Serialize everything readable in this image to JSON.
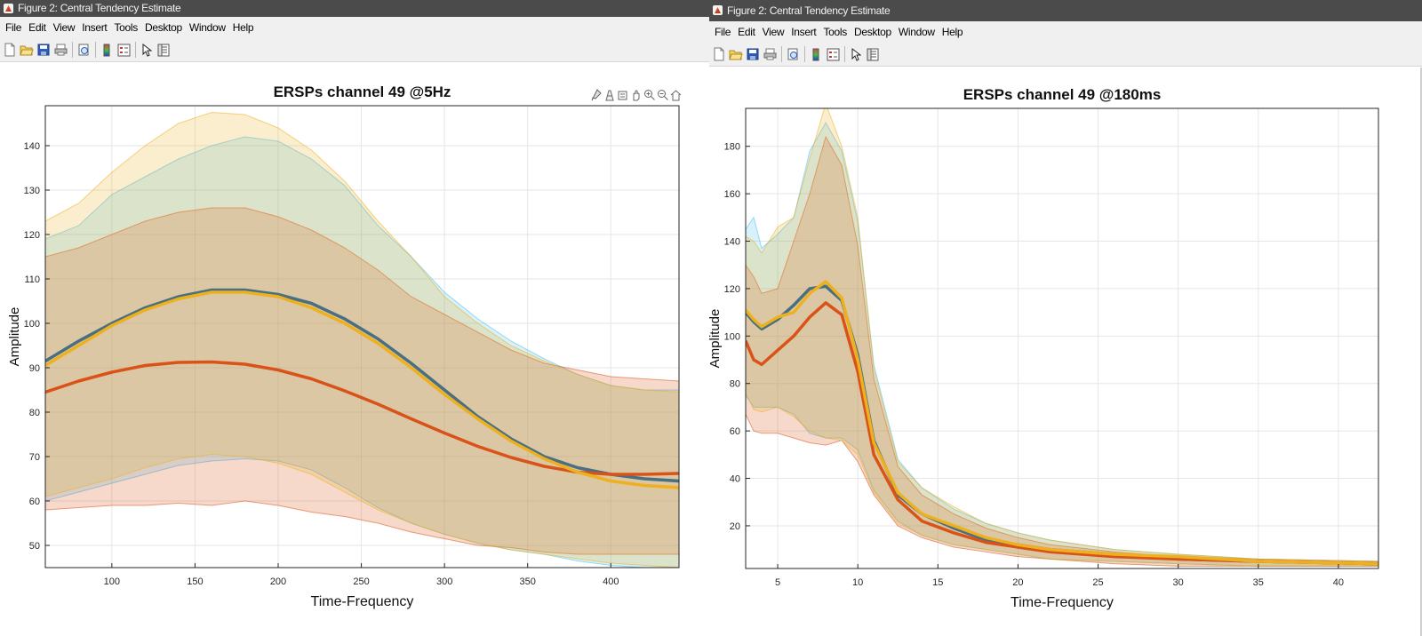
{
  "windows": [
    {
      "title": "Figure 2: Central Tendency Estimate",
      "menu": [
        "File",
        "Edit",
        "View",
        "Insert",
        "Tools",
        "Desktop",
        "Window",
        "Help"
      ],
      "toolbar_icons": [
        "new-figure-icon",
        "open-file-icon",
        "save-icon",
        "print-icon",
        "print-preview-icon",
        "colorbar-icon",
        "legend-icon",
        "pointer-icon",
        "property-inspector-icon"
      ],
      "axes_toolbar_icons": [
        "brush-icon",
        "data-tips-icon",
        "rotate-icon",
        "pan-icon",
        "zoom-in-icon",
        "zoom-out-icon",
        "home-icon"
      ]
    },
    {
      "title": "Figure 2: Central Tendency Estimate",
      "menu": [
        "File",
        "Edit",
        "View",
        "Insert",
        "Tools",
        "Desktop",
        "Window",
        "Help"
      ],
      "toolbar_icons": [
        "new-figure-icon",
        "open-file-icon",
        "save-icon",
        "print-icon",
        "print-preview-icon",
        "colorbar-icon",
        "legend-icon",
        "pointer-icon",
        "property-inspector-icon"
      ]
    }
  ],
  "chart_data": [
    {
      "type": "line",
      "title": "ERSPs channel 49 @5Hz",
      "xlabel": "Time-Frequency",
      "ylabel": "Amplitude",
      "xlim": [
        60,
        441
      ],
      "ylim": [
        45,
        149
      ],
      "xticks": [
        100,
        150,
        200,
        250,
        300,
        350,
        400
      ],
      "yticks": [
        50,
        60,
        70,
        80,
        90,
        100,
        110,
        120,
        130,
        140
      ],
      "grid": true,
      "x": [
        60,
        80,
        100,
        120,
        140,
        160,
        180,
        200,
        220,
        240,
        260,
        280,
        300,
        320,
        340,
        360,
        380,
        400,
        420,
        441
      ],
      "series": [
        {
          "name": "blue",
          "color": "#4dbeee",
          "values": [
            91.5,
            96,
            100,
            103.5,
            106,
            107.5,
            107.5,
            106.5,
            104.5,
            101,
            96.5,
            91,
            85,
            79,
            74,
            70,
            67.5,
            66,
            65,
            64.5
          ],
          "upper": [
            119,
            122,
            129,
            133,
            137,
            140,
            142,
            141,
            137,
            131,
            122,
            115,
            107,
            101,
            96,
            92,
            88.5,
            86,
            85,
            85
          ],
          "lower": [
            60,
            62,
            64,
            66,
            68,
            69,
            69.5,
            69,
            67,
            63,
            58.5,
            55,
            52.5,
            50.5,
            49,
            48,
            46.5,
            45.5,
            45,
            44.5
          ]
        },
        {
          "name": "orange",
          "color": "#d95319",
          "values": [
            84.5,
            87,
            89,
            90.5,
            91.2,
            91.3,
            90.8,
            89.5,
            87.5,
            84.8,
            81.8,
            78.5,
            75.3,
            72.3,
            69.8,
            67.8,
            66.5,
            66,
            66,
            66.2
          ],
          "upper": [
            115,
            117,
            120,
            123,
            125,
            126,
            126,
            124,
            121,
            117,
            112,
            106,
            102,
            98,
            94,
            91,
            89.5,
            88,
            87.5,
            87
          ],
          "lower": [
            58,
            58.5,
            59,
            59,
            59.5,
            59,
            60,
            59,
            57.5,
            56.5,
            55,
            53,
            51.5,
            50,
            49.5,
            48.5,
            48,
            48,
            48,
            48
          ]
        },
        {
          "name": "yellow",
          "color": "#edb120",
          "values": [
            90.5,
            95,
            99.5,
            103,
            105.5,
            107,
            107,
            106,
            103.5,
            100,
            95.5,
            90,
            84,
            78.5,
            73.5,
            69.5,
            66.5,
            64.5,
            63.5,
            63
          ],
          "upper": [
            123,
            127,
            134,
            140,
            145,
            147.5,
            147,
            144,
            139,
            132,
            123,
            115,
            106,
            100,
            95,
            91.5,
            88.5,
            86,
            85,
            84.5
          ],
          "lower": [
            61,
            63,
            65,
            67.5,
            69.5,
            70.5,
            70,
            68.5,
            66,
            62,
            58,
            55,
            52.5,
            50.5,
            49,
            48,
            47,
            46,
            45.5,
            45
          ]
        }
      ]
    },
    {
      "type": "line",
      "title": "ERSPs channel 49 @180ms",
      "xlabel": "Time-Frequency",
      "ylabel": "Amplitude",
      "xlim": [
        3,
        42.5
      ],
      "ylim": [
        2,
        196
      ],
      "xticks": [
        5,
        10,
        15,
        20,
        25,
        30,
        35,
        40
      ],
      "yticks": [
        20,
        40,
        60,
        80,
        100,
        120,
        140,
        160,
        180
      ],
      "grid": true,
      "x": [
        3,
        3.5,
        4,
        5,
        6,
        7,
        8,
        9,
        10,
        11,
        12.5,
        14,
        16,
        18,
        20,
        22,
        26,
        30,
        35,
        42.5
      ],
      "series": [
        {
          "name": "blue",
          "color": "#4dbeee",
          "values": [
            110,
            106,
            103,
            107,
            113,
            120,
            121,
            115,
            92,
            56,
            33,
            25,
            19,
            14,
            12,
            10,
            8,
            6,
            5,
            4
          ],
          "upper": [
            145,
            150,
            137,
            143,
            150,
            178,
            190,
            178,
            148,
            88,
            48,
            36,
            27,
            21,
            17,
            14,
            10,
            8,
            6,
            5
          ],
          "lower": [
            75,
            70,
            70,
            70,
            67,
            59,
            57,
            57,
            52,
            35,
            22,
            16,
            12,
            10,
            8,
            6,
            5,
            4,
            3,
            3
          ]
        },
        {
          "name": "orange",
          "color": "#d95319",
          "values": [
            98,
            90,
            88,
            94,
            100,
            108,
            114,
            109,
            85,
            50,
            31,
            22,
            17,
            13,
            11,
            9,
            7,
            6,
            5,
            4
          ],
          "upper": [
            130,
            125,
            118,
            120,
            140,
            160,
            184,
            172,
            138,
            82,
            45,
            33,
            25,
            19,
            15,
            12,
            9,
            7,
            6,
            5
          ],
          "lower": [
            67,
            60,
            59,
            59,
            57,
            55,
            54,
            56,
            47,
            33,
            20,
            15,
            11,
            9,
            7,
            6,
            4,
            3,
            3,
            3
          ]
        },
        {
          "name": "yellow",
          "color": "#edb120",
          "values": [
            111,
            107,
            104,
            108,
            110,
            118,
            123,
            116,
            90,
            55,
            34,
            25,
            20,
            15,
            12,
            10,
            8,
            7,
            5,
            4
          ],
          "upper": [
            142,
            140,
            135,
            146,
            150,
            175,
            198,
            180,
            150,
            86,
            47,
            36,
            28,
            21,
            17,
            14,
            10,
            8,
            6,
            5
          ],
          "lower": [
            76,
            69,
            68,
            70,
            66,
            60,
            57,
            56,
            50,
            34,
            21,
            16,
            12,
            10,
            8,
            6,
            5,
            4,
            3,
            3
          ]
        }
      ]
    }
  ]
}
